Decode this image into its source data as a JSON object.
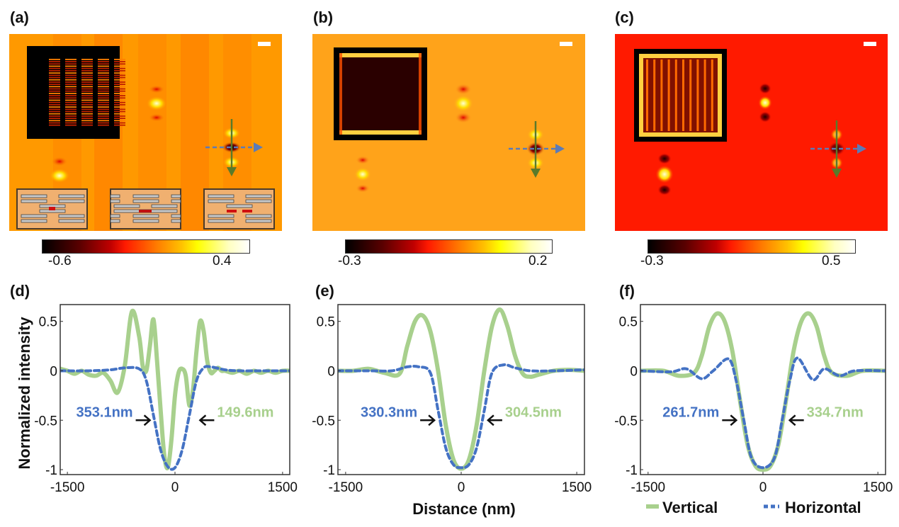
{
  "panels_top": [
    {
      "label": "(a)",
      "colorbar": {
        "min_label": "-0.6",
        "max_label": "0.4",
        "range": [
          -0.6,
          0.4
        ]
      },
      "background": "#ff9900"
    },
    {
      "label": "(b)",
      "colorbar": {
        "min_label": "-0.3",
        "max_label": "0.2",
        "range": [
          -0.3,
          0.2
        ]
      },
      "background": "#ffa31a"
    },
    {
      "label": "(c)",
      "colorbar": {
        "min_label": "-0.3",
        "max_label": "0.5",
        "range": [
          -0.3,
          0.5
        ]
      },
      "background": "#ff1a00"
    }
  ],
  "colors": {
    "vertical": "#a8d08d",
    "horizontal": "#4472c4",
    "arrow": "#111111",
    "scan_vertical": "#5a7a2a",
    "scan_horizontal": "#5b7bb8"
  },
  "ylabel": "Normalized intensity",
  "xlabel": "Distance (nm)",
  "legend": {
    "vertical": "Vertical",
    "horizontal": "Horizontal"
  },
  "chart_data": [
    {
      "type": "line",
      "label": "(d)",
      "xlim": [
        -1600,
        1600
      ],
      "ylim": [
        -1.05,
        0.67
      ],
      "xticks": [
        -1500,
        0,
        1500
      ],
      "xtick_labels": [
        "-1500",
        "0",
        "1500"
      ],
      "yticks": [
        0.5,
        0,
        -0.5,
        -1
      ],
      "ytick_labels": [
        "0.5",
        "0",
        "-0.5",
        "-1"
      ],
      "annotations": {
        "horizontal_fwhm": "353.1nm",
        "vertical_fwhm": "149.6nm"
      },
      "series": [
        {
          "name": "Vertical",
          "x": [
            -1600,
            -1500,
            -1400,
            -1300,
            -1200,
            -1100,
            -1000,
            -900,
            -800,
            -700,
            -600,
            -500,
            -450,
            -400,
            -350,
            -300,
            -250,
            -200,
            -150,
            -100,
            -50,
            0,
            50,
            100,
            150,
            200,
            250,
            300,
            350,
            400,
            450,
            500,
            550,
            600,
            650,
            700,
            800,
            900,
            1000,
            1100,
            1200,
            1300,
            1400,
            1500,
            1600
          ],
          "y": [
            0.02,
            0.0,
            -0.03,
            0.0,
            -0.04,
            -0.05,
            -0.02,
            -0.1,
            -0.22,
            0.05,
            0.6,
            0.35,
            0.05,
            0.0,
            0.25,
            0.52,
            0.1,
            -0.4,
            -0.85,
            -0.98,
            -0.7,
            -0.25,
            -0.02,
            0.02,
            -0.05,
            -0.35,
            -0.2,
            0.2,
            0.5,
            0.4,
            0.1,
            -0.02,
            0.0,
            0.03,
            0.0,
            0.0,
            -0.02,
            0.0,
            -0.03,
            0.0,
            -0.02,
            0.0,
            -0.02,
            0.0,
            0.0
          ]
        },
        {
          "name": "Horizontal",
          "x": [
            -1600,
            -1200,
            -900,
            -700,
            -500,
            -400,
            -300,
            -200,
            -100,
            0,
            100,
            200,
            300,
            400,
            500,
            700,
            900,
            1200,
            1600
          ],
          "y": [
            0.0,
            0.0,
            0.01,
            0.03,
            0.02,
            -0.1,
            -0.45,
            -0.8,
            -0.97,
            -0.98,
            -0.8,
            -0.45,
            -0.1,
            0.03,
            0.04,
            0.01,
            0.0,
            0.0,
            0.0
          ]
        }
      ]
    },
    {
      "type": "line",
      "label": "(e)",
      "xlim": [
        -1600,
        1600
      ],
      "ylim": [
        -1.05,
        0.67
      ],
      "xticks": [
        -1500,
        0,
        1500
      ],
      "xtick_labels": [
        "-1500",
        "0",
        "1500"
      ],
      "yticks": [
        0.5,
        0,
        -0.5,
        -1
      ],
      "ytick_labels": [
        "0.5",
        "0",
        "-0.5",
        "-1"
      ],
      "annotations": {
        "horizontal_fwhm": "330.3nm",
        "vertical_fwhm": "304.5nm"
      },
      "series": [
        {
          "name": "Vertical",
          "x": [
            -1600,
            -1400,
            -1200,
            -1000,
            -800,
            -700,
            -600,
            -500,
            -400,
            -300,
            -200,
            -100,
            0,
            100,
            200,
            300,
            400,
            500,
            600,
            700,
            800,
            900,
            1000,
            1200,
            1400,
            1600
          ],
          "y": [
            0.0,
            0.0,
            0.02,
            -0.02,
            -0.03,
            0.25,
            0.5,
            0.56,
            0.4,
            0.0,
            -0.55,
            -0.9,
            -0.99,
            -0.9,
            -0.55,
            0.0,
            0.45,
            0.62,
            0.45,
            0.15,
            -0.03,
            -0.06,
            -0.04,
            0.0,
            0.01,
            0.0
          ]
        },
        {
          "name": "Horizontal",
          "x": [
            -1600,
            -1200,
            -900,
            -700,
            -550,
            -400,
            -300,
            -200,
            -100,
            0,
            100,
            200,
            300,
            400,
            550,
            700,
            900,
            1200,
            1600
          ],
          "y": [
            0.0,
            0.0,
            0.0,
            0.04,
            0.04,
            -0.02,
            -0.4,
            -0.78,
            -0.95,
            -0.98,
            -0.95,
            -0.78,
            -0.4,
            -0.02,
            0.06,
            0.03,
            0.0,
            0.0,
            0.01
          ]
        }
      ]
    },
    {
      "type": "line",
      "label": "(f)",
      "xlim": [
        -1600,
        1600
      ],
      "ylim": [
        -1.05,
        0.67
      ],
      "xticks": [
        -1500,
        0,
        1500
      ],
      "xtick_labels": [
        "-1500",
        "0",
        "1500"
      ],
      "yticks": [
        0.5,
        0,
        -0.5,
        -1
      ],
      "ytick_labels": [
        "0.5",
        "0",
        "-0.5",
        "-1"
      ],
      "annotations": {
        "horizontal_fwhm": "261.7nm",
        "vertical_fwhm": "334.7nm"
      },
      "series": [
        {
          "name": "Vertical",
          "x": [
            -1600,
            -1300,
            -1100,
            -900,
            -800,
            -700,
            -600,
            -500,
            -400,
            -300,
            -200,
            -100,
            0,
            100,
            200,
            300,
            400,
            500,
            600,
            700,
            800,
            900,
            1100,
            1300,
            1600
          ],
          "y": [
            0.0,
            0.0,
            -0.05,
            -0.02,
            0.15,
            0.45,
            0.58,
            0.5,
            0.2,
            -0.3,
            -0.75,
            -0.96,
            -1.0,
            -0.96,
            -0.75,
            -0.3,
            0.2,
            0.5,
            0.58,
            0.45,
            0.15,
            -0.02,
            -0.05,
            0.0,
            0.0
          ]
        },
        {
          "name": "Horizontal",
          "x": [
            -1600,
            -1200,
            -1000,
            -800,
            -650,
            -450,
            -350,
            -250,
            -150,
            0,
            150,
            250,
            350,
            450,
            650,
            800,
            1000,
            1200,
            1600
          ],
          "y": [
            0.0,
            -0.01,
            0.02,
            -0.08,
            0.0,
            0.12,
            -0.1,
            -0.5,
            -0.88,
            -0.98,
            -0.88,
            -0.5,
            -0.1,
            0.13,
            -0.09,
            0.02,
            -0.05,
            0.0,
            0.0
          ]
        }
      ]
    }
  ]
}
